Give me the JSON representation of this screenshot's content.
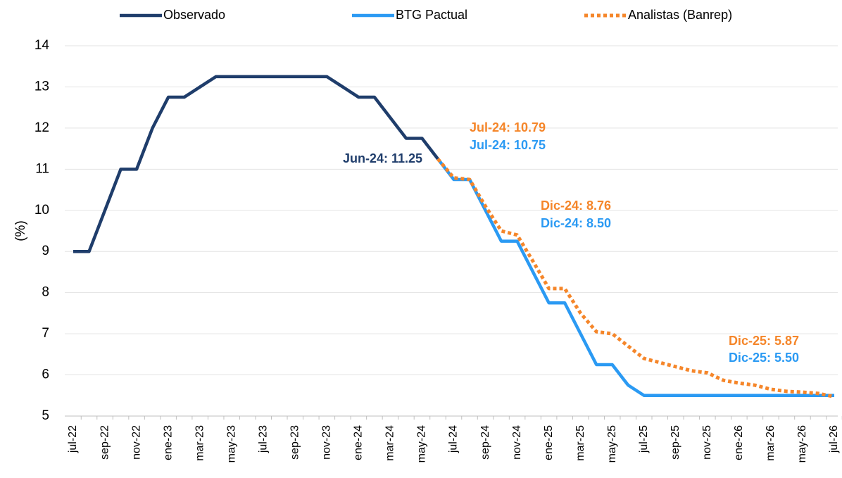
{
  "chart_data": {
    "type": "line",
    "y_label": "(%)",
    "categories": [
      "jul-22",
      null,
      "sep-22",
      null,
      "nov-22",
      null,
      "ene-23",
      null,
      "mar-23",
      null,
      "may-23",
      null,
      "jul-23",
      null,
      "sep-23",
      null,
      "nov-23",
      null,
      "ene-24",
      null,
      "mar-24",
      null,
      "may-24",
      null,
      "jul-24",
      null,
      "sep-24",
      null,
      "nov-24",
      null,
      "ene-25",
      null,
      "mar-25",
      null,
      "may-25",
      null,
      "jul-25",
      null,
      "sep-25",
      null,
      "nov-25",
      null,
      "ene-26",
      null,
      "mar-26",
      null,
      "may-26",
      null,
      "jul-26"
    ],
    "series": [
      {
        "name": "Observado",
        "color": "#1f3d6b",
        "dash": false,
        "values": [
          9.0,
          9.0,
          10.0,
          11.0,
          11.0,
          12.0,
          12.75,
          12.75,
          13.0,
          13.25,
          13.25,
          13.25,
          13.25,
          13.25,
          13.25,
          13.25,
          13.25,
          13.0,
          12.75,
          12.75,
          12.25,
          11.75,
          11.75,
          11.25,
          null,
          null,
          null,
          null,
          null,
          null,
          null,
          null,
          null,
          null,
          null,
          null,
          null,
          null,
          null,
          null,
          null,
          null,
          null,
          null,
          null,
          null,
          null,
          null,
          null
        ]
      },
      {
        "name": "BTG Pactual",
        "color": "#2b9af3",
        "dash": false,
        "values": [
          null,
          null,
          null,
          null,
          null,
          null,
          null,
          null,
          null,
          null,
          null,
          null,
          null,
          null,
          null,
          null,
          null,
          null,
          null,
          null,
          null,
          null,
          null,
          11.25,
          10.75,
          10.75,
          10.0,
          9.25,
          9.25,
          8.5,
          7.75,
          7.75,
          7.0,
          6.25,
          6.25,
          5.75,
          5.5,
          5.5,
          5.5,
          5.5,
          5.5,
          5.5,
          5.5,
          5.5,
          5.5,
          5.5,
          5.5,
          5.5,
          5.5
        ]
      },
      {
        "name": "Analistas (Banrep)",
        "color": "#f5862a",
        "dash": true,
        "values": [
          null,
          null,
          null,
          null,
          null,
          null,
          null,
          null,
          null,
          null,
          null,
          null,
          null,
          null,
          null,
          null,
          null,
          null,
          null,
          null,
          null,
          null,
          null,
          11.25,
          10.79,
          10.75,
          10.1,
          9.5,
          9.4,
          8.76,
          8.1,
          8.1,
          7.5,
          7.05,
          7.0,
          6.7,
          6.4,
          6.3,
          6.2,
          6.1,
          6.05,
          5.87,
          5.8,
          5.75,
          5.65,
          5.6,
          5.58,
          5.55,
          5.47
        ]
      }
    ],
    "annotations": [
      {
        "text": "Jun-24: 11.25",
        "color": "#1f3d6b"
      },
      {
        "text": "Jul-24: 10.79",
        "color": "#f5862a"
      },
      {
        "text": "Jul-24: 10.75",
        "color": "#2b9af3"
      },
      {
        "text": "Dic-24: 8.76",
        "color": "#f5862a"
      },
      {
        "text": "Dic-24: 8.50",
        "color": "#2b9af3"
      },
      {
        "text": "Dic-25: 5.87",
        "color": "#f5862a"
      },
      {
        "text": "Dic-25: 5.50",
        "color": "#2b9af3"
      }
    ],
    "ylim": [
      5,
      14
    ],
    "yticks": [
      5,
      6,
      7,
      8,
      9,
      10,
      11,
      12,
      13,
      14
    ],
    "grid": true,
    "legend": "top"
  }
}
